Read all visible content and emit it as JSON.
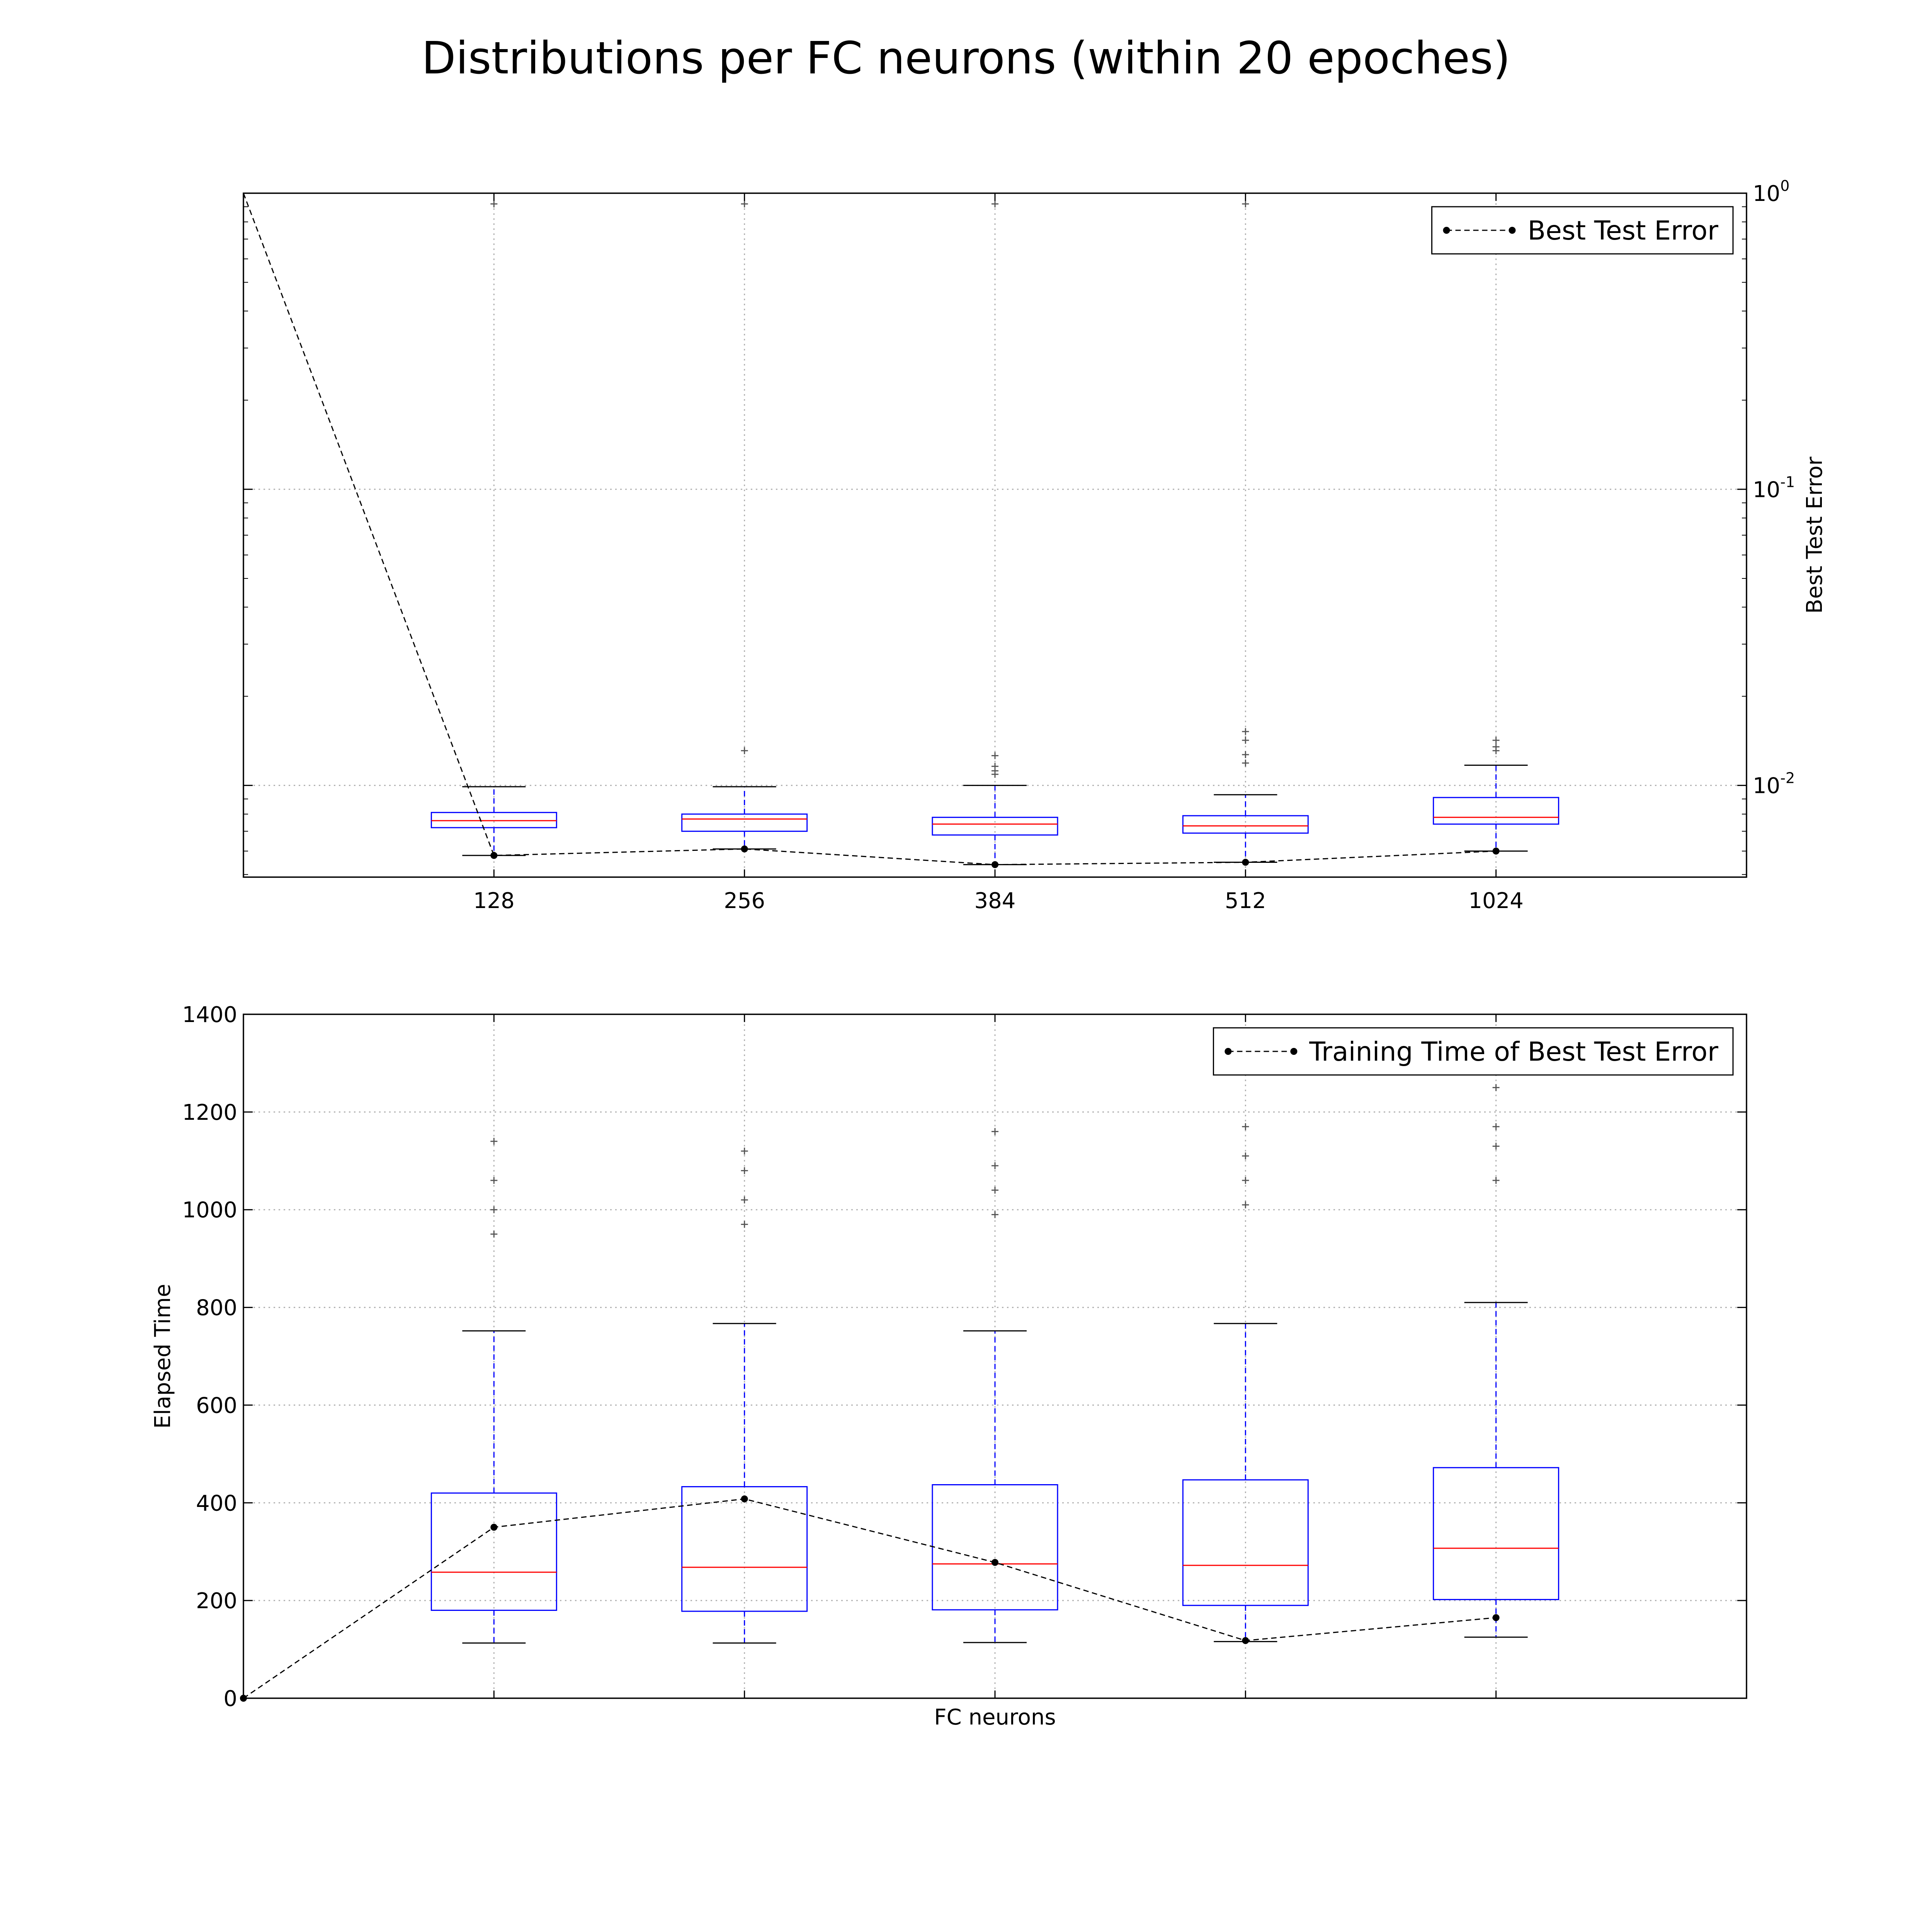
{
  "figure": {
    "title": "Distributions per FC neurons (within 20 epoches)"
  },
  "chart_data": [
    {
      "type": "box",
      "yscale": "log",
      "y_axis_side": "right",
      "ylabel": "Best Test Error",
      "xlabel": "",
      "ylim": [
        0.0049,
        1.0
      ],
      "grid": true,
      "legend_position": "top-right",
      "categories": [
        "128",
        "256",
        "384",
        "512",
        "1024"
      ],
      "y_ticks": [
        {
          "value": 0.01,
          "base": "10",
          "exp": "-2"
        },
        {
          "value": 0.1,
          "base": "10",
          "exp": "-1"
        },
        {
          "value": 1.0,
          "base": "10",
          "exp": "0"
        }
      ],
      "boxes": [
        {
          "category": "128",
          "whisker_low": 0.0058,
          "q1": 0.0072,
          "median": 0.0076,
          "q3": 0.0081,
          "whisker_high": 0.0099,
          "outliers": [
            0.92
          ]
        },
        {
          "category": "256",
          "whisker_low": 0.0061,
          "q1": 0.007,
          "median": 0.0077,
          "q3": 0.008,
          "whisker_high": 0.0099,
          "outliers": [
            0.0131,
            0.92
          ]
        },
        {
          "category": "384",
          "whisker_low": 0.0054,
          "q1": 0.0068,
          "median": 0.0074,
          "q3": 0.0078,
          "whisker_high": 0.01,
          "outliers": [
            0.0109,
            0.0112,
            0.0116,
            0.0126,
            0.92
          ]
        },
        {
          "category": "512",
          "whisker_low": 0.0055,
          "q1": 0.0069,
          "median": 0.0073,
          "q3": 0.0079,
          "whisker_high": 0.0093,
          "outliers": [
            0.0119,
            0.0127,
            0.0142,
            0.0152,
            0.92
          ]
        },
        {
          "category": "1024",
          "whisker_low": 0.006,
          "q1": 0.0074,
          "median": 0.0078,
          "q3": 0.0091,
          "whisker_high": 0.0117,
          "outliers": [
            0.0131,
            0.0135,
            0.0142
          ]
        }
      ],
      "line": {
        "name": "Best Test Error",
        "points": [
          {
            "x": "128",
            "y": 0.0058
          },
          {
            "x": "256",
            "y": 0.0061
          },
          {
            "x": "384",
            "y": 0.0054
          },
          {
            "x": "512",
            "y": 0.0055
          },
          {
            "x": "1024",
            "y": 0.006
          }
        ],
        "left_edge_point": {
          "y": 1.0
        }
      },
      "colors": {
        "box": "#0000ff",
        "median": "#ff0000",
        "whisker_cap": "#000000",
        "line": "#000000",
        "outlier": "#555555",
        "grid": "#b0b0b0"
      }
    },
    {
      "type": "box",
      "yscale": "linear",
      "y_axis_side": "left",
      "ylabel": "Elapsed Time",
      "xlabel": "FC neurons",
      "ylim": [
        0,
        1400
      ],
      "grid": true,
      "legend_position": "top-right",
      "categories": [
        "128",
        "256",
        "384",
        "512",
        "1024"
      ],
      "y_ticks": [
        0,
        200,
        400,
        600,
        800,
        1000,
        1200,
        1400
      ],
      "boxes": [
        {
          "category": "128",
          "whisker_low": 113,
          "q1": 180,
          "median": 258,
          "q3": 420,
          "whisker_high": 752,
          "outliers": [
            950,
            1000,
            1060,
            1140
          ]
        },
        {
          "category": "256",
          "whisker_low": 113,
          "q1": 178,
          "median": 268,
          "q3": 433,
          "whisker_high": 767,
          "outliers": [
            970,
            1020,
            1080,
            1120
          ]
        },
        {
          "category": "384",
          "whisker_low": 114,
          "q1": 181,
          "median": 275,
          "q3": 437,
          "whisker_high": 752,
          "outliers": [
            990,
            1040,
            1090,
            1160
          ]
        },
        {
          "category": "512",
          "whisker_low": 116,
          "q1": 190,
          "median": 272,
          "q3": 447,
          "whisker_high": 767,
          "outliers": [
            1010,
            1060,
            1110,
            1170
          ]
        },
        {
          "category": "1024",
          "whisker_low": 125,
          "q1": 202,
          "median": 307,
          "q3": 472,
          "whisker_high": 810,
          "outliers": [
            1060,
            1130,
            1170,
            1250
          ]
        }
      ],
      "line": {
        "name": "Training Time of Best Test Error",
        "points": [
          {
            "x": "128",
            "y": 350
          },
          {
            "x": "256",
            "y": 408
          },
          {
            "x": "384",
            "y": 278
          },
          {
            "x": "512",
            "y": 118
          },
          {
            "x": "1024",
            "y": 165
          }
        ],
        "left_edge_point": {
          "y": 0
        }
      },
      "colors": {
        "box": "#0000ff",
        "median": "#ff0000",
        "whisker_cap": "#000000",
        "line": "#000000",
        "outlier": "#555555",
        "grid": "#b0b0b0"
      }
    }
  ]
}
